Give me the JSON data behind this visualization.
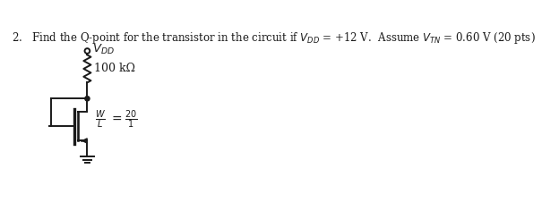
{
  "bg_color": "#ffffff",
  "line_color": "#1a1a1a",
  "figsize": [
    6.24,
    2.45
  ],
  "dpi": 100,
  "resistor_label": "100 kΩ",
  "wl_num": "20",
  "wl_den": "1"
}
